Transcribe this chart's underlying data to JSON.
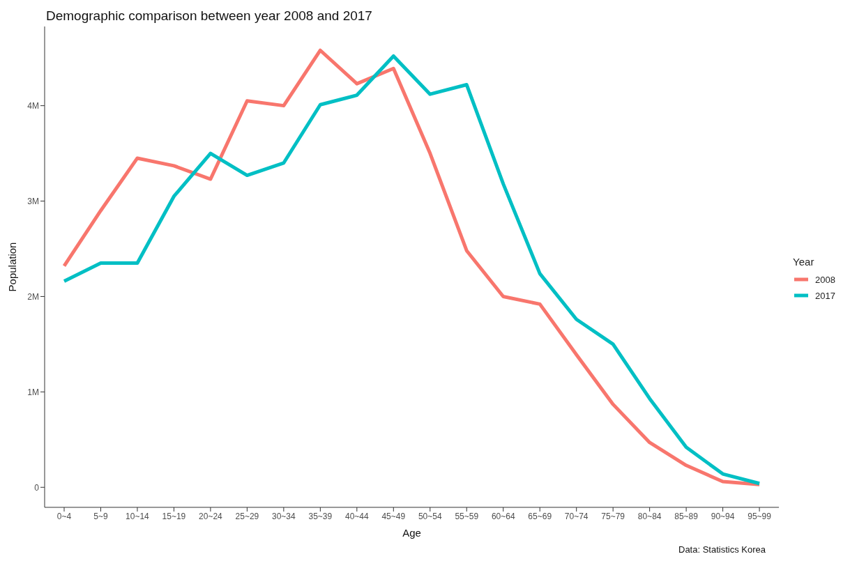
{
  "chart_data": {
    "type": "line",
    "title": "Demographic comparison between year 2008 and 2017",
    "xlabel": "Age",
    "ylabel": "Population",
    "legend_title": "Year",
    "annotations": [
      "Data: Statistics Korea"
    ],
    "categories": [
      "0~4",
      "5~9",
      "10~14",
      "15~19",
      "20~24",
      "25~29",
      "30~34",
      "35~39",
      "40~44",
      "45~49",
      "50~54",
      "55~59",
      "60~64",
      "65~69",
      "70~74",
      "75~79",
      "80~84",
      "85~89",
      "90~94",
      "95~99"
    ],
    "series": [
      {
        "name": "2008",
        "color": "#f8766d",
        "values": [
          2320000,
          2900000,
          3450000,
          3370000,
          3230000,
          4050000,
          4000000,
          4580000,
          4230000,
          4390000,
          3500000,
          2480000,
          2000000,
          1920000,
          1390000,
          870000,
          470000,
          230000,
          60000,
          30000
        ]
      },
      {
        "name": "2017",
        "color": "#00bfc4",
        "values": [
          2160000,
          2350000,
          2350000,
          3050000,
          3500000,
          3270000,
          3400000,
          4010000,
          4110000,
          4520000,
          4120000,
          4220000,
          3180000,
          2240000,
          1760000,
          1500000,
          930000,
          420000,
          140000,
          40000
        ]
      }
    ],
    "ylim": [
      -210000,
      4830000
    ],
    "yticks": [
      0,
      {
        "value": 1000000,
        "label": "1M"
      },
      {
        "value": 2000000,
        "label": "2M"
      },
      {
        "value": 3000000,
        "label": "3M"
      },
      {
        "value": 4000000,
        "label": "4M"
      }
    ],
    "grid": false,
    "legend": "right",
    "marker": "none",
    "line_style": "solid"
  }
}
